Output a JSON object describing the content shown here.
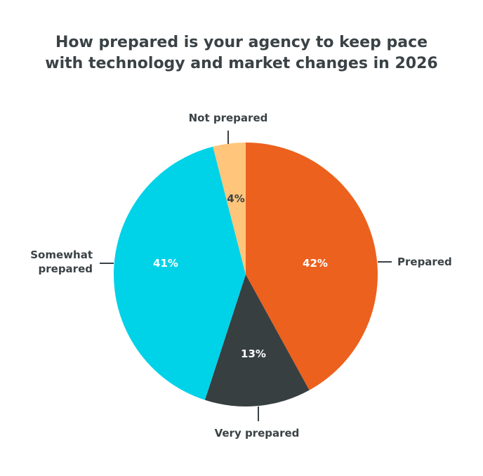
{
  "chart_data": {
    "type": "pie",
    "title": "How prepared is your agency to keep pace with technology and market changes in 2026",
    "title_lines": [
      "How prepared is your agency to keep pace",
      "with technology and market changes in 2026"
    ],
    "start": "top, clockwise",
    "slices": [
      {
        "label": "Prepared",
        "value": 42,
        "value_label": "42%",
        "color": "#EC611E",
        "text_color": "#ffffff"
      },
      {
        "label": "Very prepared",
        "value": 13,
        "value_label": "13%",
        "color": "#373F41",
        "text_color": "#ffffff"
      },
      {
        "label": "Somewhat prepared",
        "value": 41,
        "value_label": "41%",
        "color": "#00D2E8",
        "text_color": "#ffffff"
      },
      {
        "label": "Not prepared",
        "value": 4,
        "value_label": "4%",
        "color": "#FFC57B",
        "text_color": "#3a4245"
      }
    ]
  }
}
